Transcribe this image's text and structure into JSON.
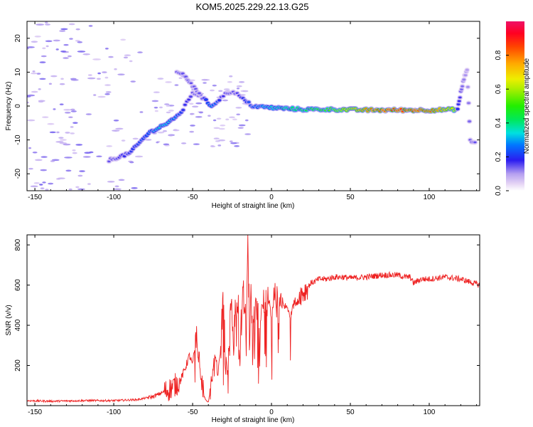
{
  "title": "KOM5.2025.229.22.13.G25",
  "chart_data": [
    {
      "type": "heatmap",
      "xlabel": "Height of straight line (km)",
      "ylabel": "Frequency (Hz)",
      "xlim": [
        -155,
        132
      ],
      "ylim": [
        -25,
        25
      ],
      "xticks": [
        -150,
        -100,
        -50,
        0,
        50,
        100
      ],
      "yticks": [
        -20,
        -10,
        0,
        10,
        20
      ],
      "colorbar": {
        "label": "Normalized spectral amplitude",
        "range": [
          0,
          1
        ],
        "ticks": [
          0.0,
          0.2,
          0.4,
          0.6,
          0.8
        ]
      },
      "features": [
        {
          "name": "doppler_track",
          "points": [
            [
              -103,
              -16
            ],
            [
              -90,
              -14
            ],
            [
              -78,
              -8
            ],
            [
              -70,
              -6
            ],
            [
              -62,
              -4
            ],
            [
              -56,
              -1
            ],
            [
              -50,
              4
            ],
            [
              -45,
              3
            ],
            [
              -38,
              0
            ],
            [
              -33,
              2
            ],
            [
              -28,
              4
            ],
            [
              -23,
              4
            ],
            [
              -18,
              2
            ],
            [
              -12,
              0
            ],
            [
              0,
              -0.5
            ],
            [
              20,
              -1
            ],
            [
              40,
              -1
            ],
            [
              60,
              -1.2
            ],
            [
              80,
              -1.2
            ],
            [
              100,
              -1.2
            ],
            [
              118,
              -1
            ]
          ],
          "amplitude": [
            0.15,
            0.2,
            0.25,
            0.35,
            0.3,
            0.2,
            0.15,
            0.15,
            0.3,
            0.2,
            0.15,
            0.15,
            0.2,
            0.25,
            0.35,
            0.45,
            0.55,
            0.8,
            0.9,
            0.85,
            0.6
          ]
        },
        {
          "name": "upper_branch",
          "points": [
            [
              -60,
              10
            ],
            [
              -55,
              9
            ],
            [
              -52,
              7
            ],
            [
              -48,
              5
            ],
            [
              -45,
              3
            ]
          ],
          "amplitude": [
            0.15,
            0.15,
            0.15,
            0.15,
            0.15
          ]
        },
        {
          "name": "edge_rise",
          "points": [
            [
              118,
              -1
            ],
            [
              120,
              4
            ],
            [
              122,
              8
            ],
            [
              124,
              11
            ],
            [
              126,
              -10
            ],
            [
              130,
              -11
            ]
          ],
          "amplitude": [
            0.2,
            0.15,
            0.12,
            0.1,
            0.15,
            0.15
          ]
        }
      ]
    },
    {
      "type": "line",
      "xlabel": "Height of straight line (km)",
      "ylabel": "SNR (v/v)",
      "xlim": [
        -155,
        132
      ],
      "ylim": [
        0,
        850
      ],
      "xticks": [
        -150,
        -100,
        -50,
        0,
        50,
        100
      ],
      "yticks": [
        200,
        400,
        600,
        800
      ],
      "series": [
        {
          "name": "SNR",
          "color": "#ee2222",
          "x": [
            -155,
            -140,
            -120,
            -100,
            -85,
            -75,
            -65,
            -58,
            -55,
            -52,
            -50,
            -48,
            -46,
            -45,
            -43,
            -42,
            -40,
            -38,
            -36,
            -34,
            -32,
            -30,
            -28,
            -26,
            -24,
            -22,
            -20,
            -18,
            -16,
            -15,
            -14,
            -13,
            -12,
            -10,
            -8,
            -6,
            -4,
            -2,
            0,
            2,
            4,
            6,
            8,
            10,
            12,
            14,
            16,
            18,
            20,
            22,
            25,
            28,
            30,
            35,
            40,
            45,
            50,
            60,
            70,
            80,
            85,
            88,
            90,
            95,
            100,
            110,
            120,
            132
          ],
          "y": [
            25,
            22,
            25,
            25,
            30,
            45,
            80,
            120,
            180,
            250,
            200,
            330,
            220,
            150,
            60,
            30,
            20,
            120,
            250,
            150,
            300,
            420,
            150,
            500,
            250,
            520,
            200,
            600,
            350,
            850,
            280,
            600,
            200,
            560,
            250,
            540,
            380,
            560,
            420,
            580,
            350,
            560,
            480,
            500,
            420,
            540,
            500,
            560,
            560,
            580,
            610,
            620,
            630,
            630,
            640,
            640,
            635,
            640,
            650,
            650,
            640,
            640,
            610,
            630,
            630,
            640,
            630,
            600
          ],
          "noise": {
            "0-40": 5,
            "40-70": 10,
            "70-120": 60,
            "120-285": 20,
            "285-430": 200,
            "430-530": 20,
            "530-590": 60,
            "590-999": 15
          }
        }
      ]
    }
  ]
}
